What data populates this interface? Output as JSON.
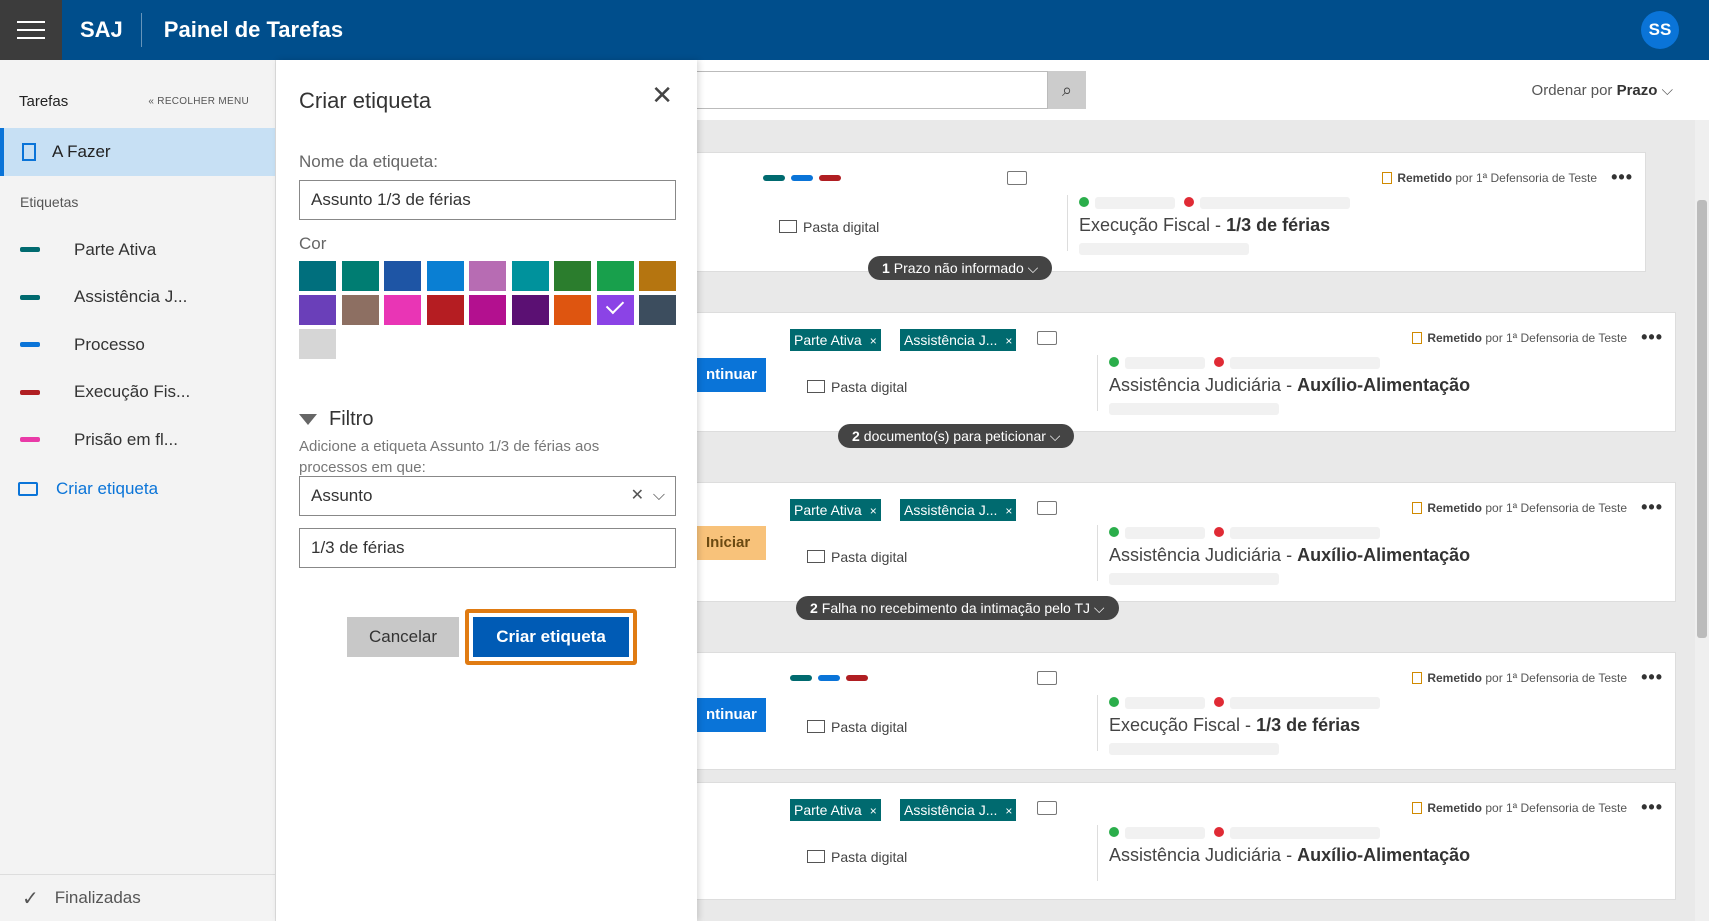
{
  "header": {
    "app_name": "SAJ",
    "page_title": "Painel de Tarefas",
    "user_initials": "SS"
  },
  "sidebar": {
    "title": "Tarefas",
    "collapse_label": "« RECOLHER MENU",
    "active_item": "A Fazer",
    "section_label": "Etiquetas",
    "tags": [
      {
        "label": "Parte Ativa",
        "color": "#006a6f"
      },
      {
        "label": "Assistência J...",
        "color": "#006a6f"
      },
      {
        "label": "Processo",
        "color": "#0a74d8"
      },
      {
        "label": "Execução Fis...",
        "color": "#b01e22"
      },
      {
        "label": "Prisão em fl...",
        "color": "#e93aa7"
      }
    ],
    "create_label": "Criar etiqueta",
    "finished_label": "Finalizadas"
  },
  "toolbar": {
    "sort_prefix": "Ordenar por",
    "sort_value": "Prazo"
  },
  "panel": {
    "title": "Criar etiqueta",
    "name_label": "Nome da etiqueta:",
    "name_value": "Assunto 1/3 de férias",
    "color_label": "Cor",
    "colors": [
      "#006f7d",
      "#007d72",
      "#1e55a5",
      "#0a7fd3",
      "#b76cb3",
      "#00929c",
      "#2b7d2d",
      "#18a04c",
      "#b57510",
      "#6a3fb9",
      "#8d6f62",
      "#e935b5",
      "#b51d22",
      "#b3108f",
      "#5b1073",
      "#de5510",
      "#8b43e6",
      "#3c4d5e",
      "#d6d6d6"
    ],
    "selected_color_index": 16,
    "filter_title": "Filtro",
    "filter_desc": "Adicione a etiqueta Assunto 1/3 de férias aos processos em que:",
    "field_select": "Assunto",
    "field_value": "1/3 de férias",
    "cancel_label": "Cancelar",
    "create_label": "Criar etiqueta"
  },
  "cards": [
    {
      "remetido_label": "Remetido",
      "remetido_by": "por 1ª Defensoria de Teste",
      "pasta": "Pasta digital",
      "subject_class": "Execução Fiscal - ",
      "subject_type": "1/3 de férias",
      "pill_count": "1",
      "pill_text": "Prazo não informado"
    },
    {
      "action": "ntinuar",
      "tags": [
        "Parte Ativa",
        "Assistência J..."
      ],
      "remetido_label": "Remetido",
      "remetido_by": "por 1ª Defensoria de Teste",
      "pasta": "Pasta digital",
      "subject_class": "Assistência Judiciária - ",
      "subject_type": "Auxílio-Alimentação",
      "pill_count": "2",
      "pill_text": "documento(s) para peticionar"
    },
    {
      "action": "Iniciar",
      "tags": [
        "Parte Ativa",
        "Assistência J..."
      ],
      "remetido_label": "Remetido",
      "remetido_by": "por 1ª Defensoria de Teste",
      "pasta": "Pasta digital",
      "subject_class": "Assistência Judiciária - ",
      "subject_type": "Auxílio-Alimentação",
      "pill_count": "2",
      "pill_text": "Falha no recebimento da intimação pelo TJ"
    },
    {
      "action": "ntinuar",
      "remetido_label": "Remetido",
      "remetido_by": "por 1ª Defensoria de Teste",
      "pasta": "Pasta digital",
      "subject_class": "Execução Fiscal - ",
      "subject_type": "1/3 de férias"
    },
    {
      "tags": [
        "Parte Ativa",
        "Assistência J..."
      ],
      "remetido_label": "Remetido",
      "remetido_by": "por 1ª Defensoria de Teste",
      "pasta": "Pasta digital",
      "subject_class": "Assistência Judiciária - ",
      "subject_type": "Auxílio-Alimentação"
    }
  ],
  "tag_close": "×"
}
